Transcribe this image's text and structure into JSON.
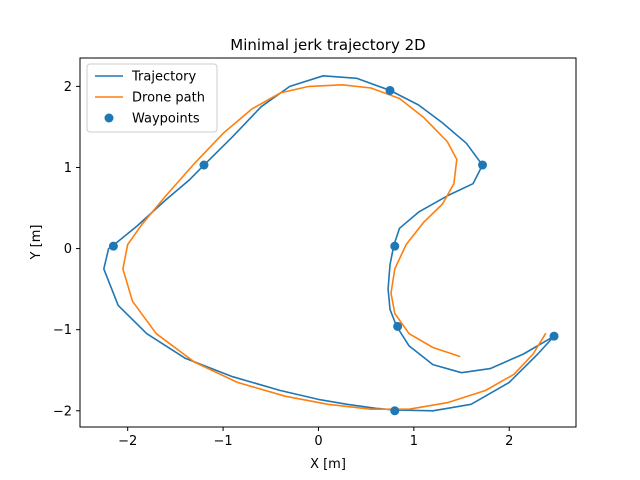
{
  "chart_data": {
    "type": "line",
    "title": "Minimal jerk trajectory 2D",
    "xlabel": "X [m]",
    "ylabel": "Y [m]",
    "xlim": [
      -2.5,
      2.7
    ],
    "ylim": [
      -2.2,
      2.35
    ],
    "xticks": [
      -2,
      -1,
      0,
      1,
      2
    ],
    "yticks": [
      -2,
      -1,
      0,
      1,
      2
    ],
    "grid": false,
    "legend_position": "top-left",
    "series": [
      {
        "name": "Trajectory",
        "kind": "line",
        "color": "#1f77b4",
        "x": [
          0.8,
          0.6,
          0.3,
          0.0,
          -0.4,
          -0.9,
          -1.4,
          -1.8,
          -2.1,
          -2.25,
          -2.2,
          -2.15,
          -1.9,
          -1.6,
          -1.35,
          -1.2,
          -0.9,
          -0.6,
          -0.3,
          0.05,
          0.4,
          0.75,
          1.05,
          1.3,
          1.55,
          1.72,
          1.62,
          1.35,
          1.05,
          0.85,
          0.79,
          0.75,
          0.73,
          0.75,
          0.82,
          0.95,
          1.2,
          1.5,
          1.8,
          2.15,
          2.47,
          2.3,
          2.0,
          1.6,
          1.2,
          0.8
        ],
        "y": [
          -1.99,
          -1.97,
          -1.92,
          -1.86,
          -1.75,
          -1.58,
          -1.35,
          -1.05,
          -0.7,
          -0.25,
          0.0,
          0.04,
          0.28,
          0.6,
          0.85,
          1.03,
          1.38,
          1.75,
          2.0,
          2.13,
          2.1,
          1.95,
          1.77,
          1.55,
          1.3,
          1.03,
          0.8,
          0.65,
          0.45,
          0.25,
          0.04,
          -0.2,
          -0.5,
          -0.75,
          -0.96,
          -1.2,
          -1.43,
          -1.53,
          -1.48,
          -1.3,
          -1.08,
          -1.3,
          -1.65,
          -1.92,
          -2.0,
          -1.99
        ]
      },
      {
        "name": "Drone path",
        "kind": "line",
        "color": "#ff7f0e",
        "x": [
          2.38,
          2.25,
          2.05,
          1.75,
          1.35,
          0.95,
          0.55,
          0.1,
          -0.35,
          -0.85,
          -1.3,
          -1.7,
          -1.95,
          -2.05,
          -2.0,
          -1.85,
          -1.6,
          -1.3,
          -1.0,
          -0.7,
          -0.4,
          -0.1,
          0.25,
          0.55,
          0.85,
          1.1,
          1.35,
          1.45,
          1.42,
          1.3,
          1.1,
          0.92,
          0.8,
          0.76,
          0.8,
          0.95,
          1.2,
          1.48
        ],
        "y": [
          -1.05,
          -1.3,
          -1.55,
          -1.75,
          -1.9,
          -1.98,
          -1.98,
          -1.92,
          -1.82,
          -1.65,
          -1.4,
          -1.05,
          -0.65,
          -0.25,
          0.05,
          0.3,
          0.65,
          1.05,
          1.42,
          1.72,
          1.92,
          2.0,
          2.02,
          1.98,
          1.85,
          1.62,
          1.32,
          1.1,
          0.8,
          0.55,
          0.32,
          0.05,
          -0.25,
          -0.55,
          -0.8,
          -1.05,
          -1.22,
          -1.33
        ]
      },
      {
        "name": "Waypoints",
        "kind": "scatter",
        "color": "#1f77b4",
        "x": [
          0.75,
          1.72,
          0.8,
          0.83,
          2.47,
          0.8,
          -2.15,
          -1.2
        ],
        "y": [
          1.95,
          1.03,
          0.03,
          -0.96,
          -1.08,
          -2.0,
          0.03,
          1.03
        ]
      }
    ]
  }
}
